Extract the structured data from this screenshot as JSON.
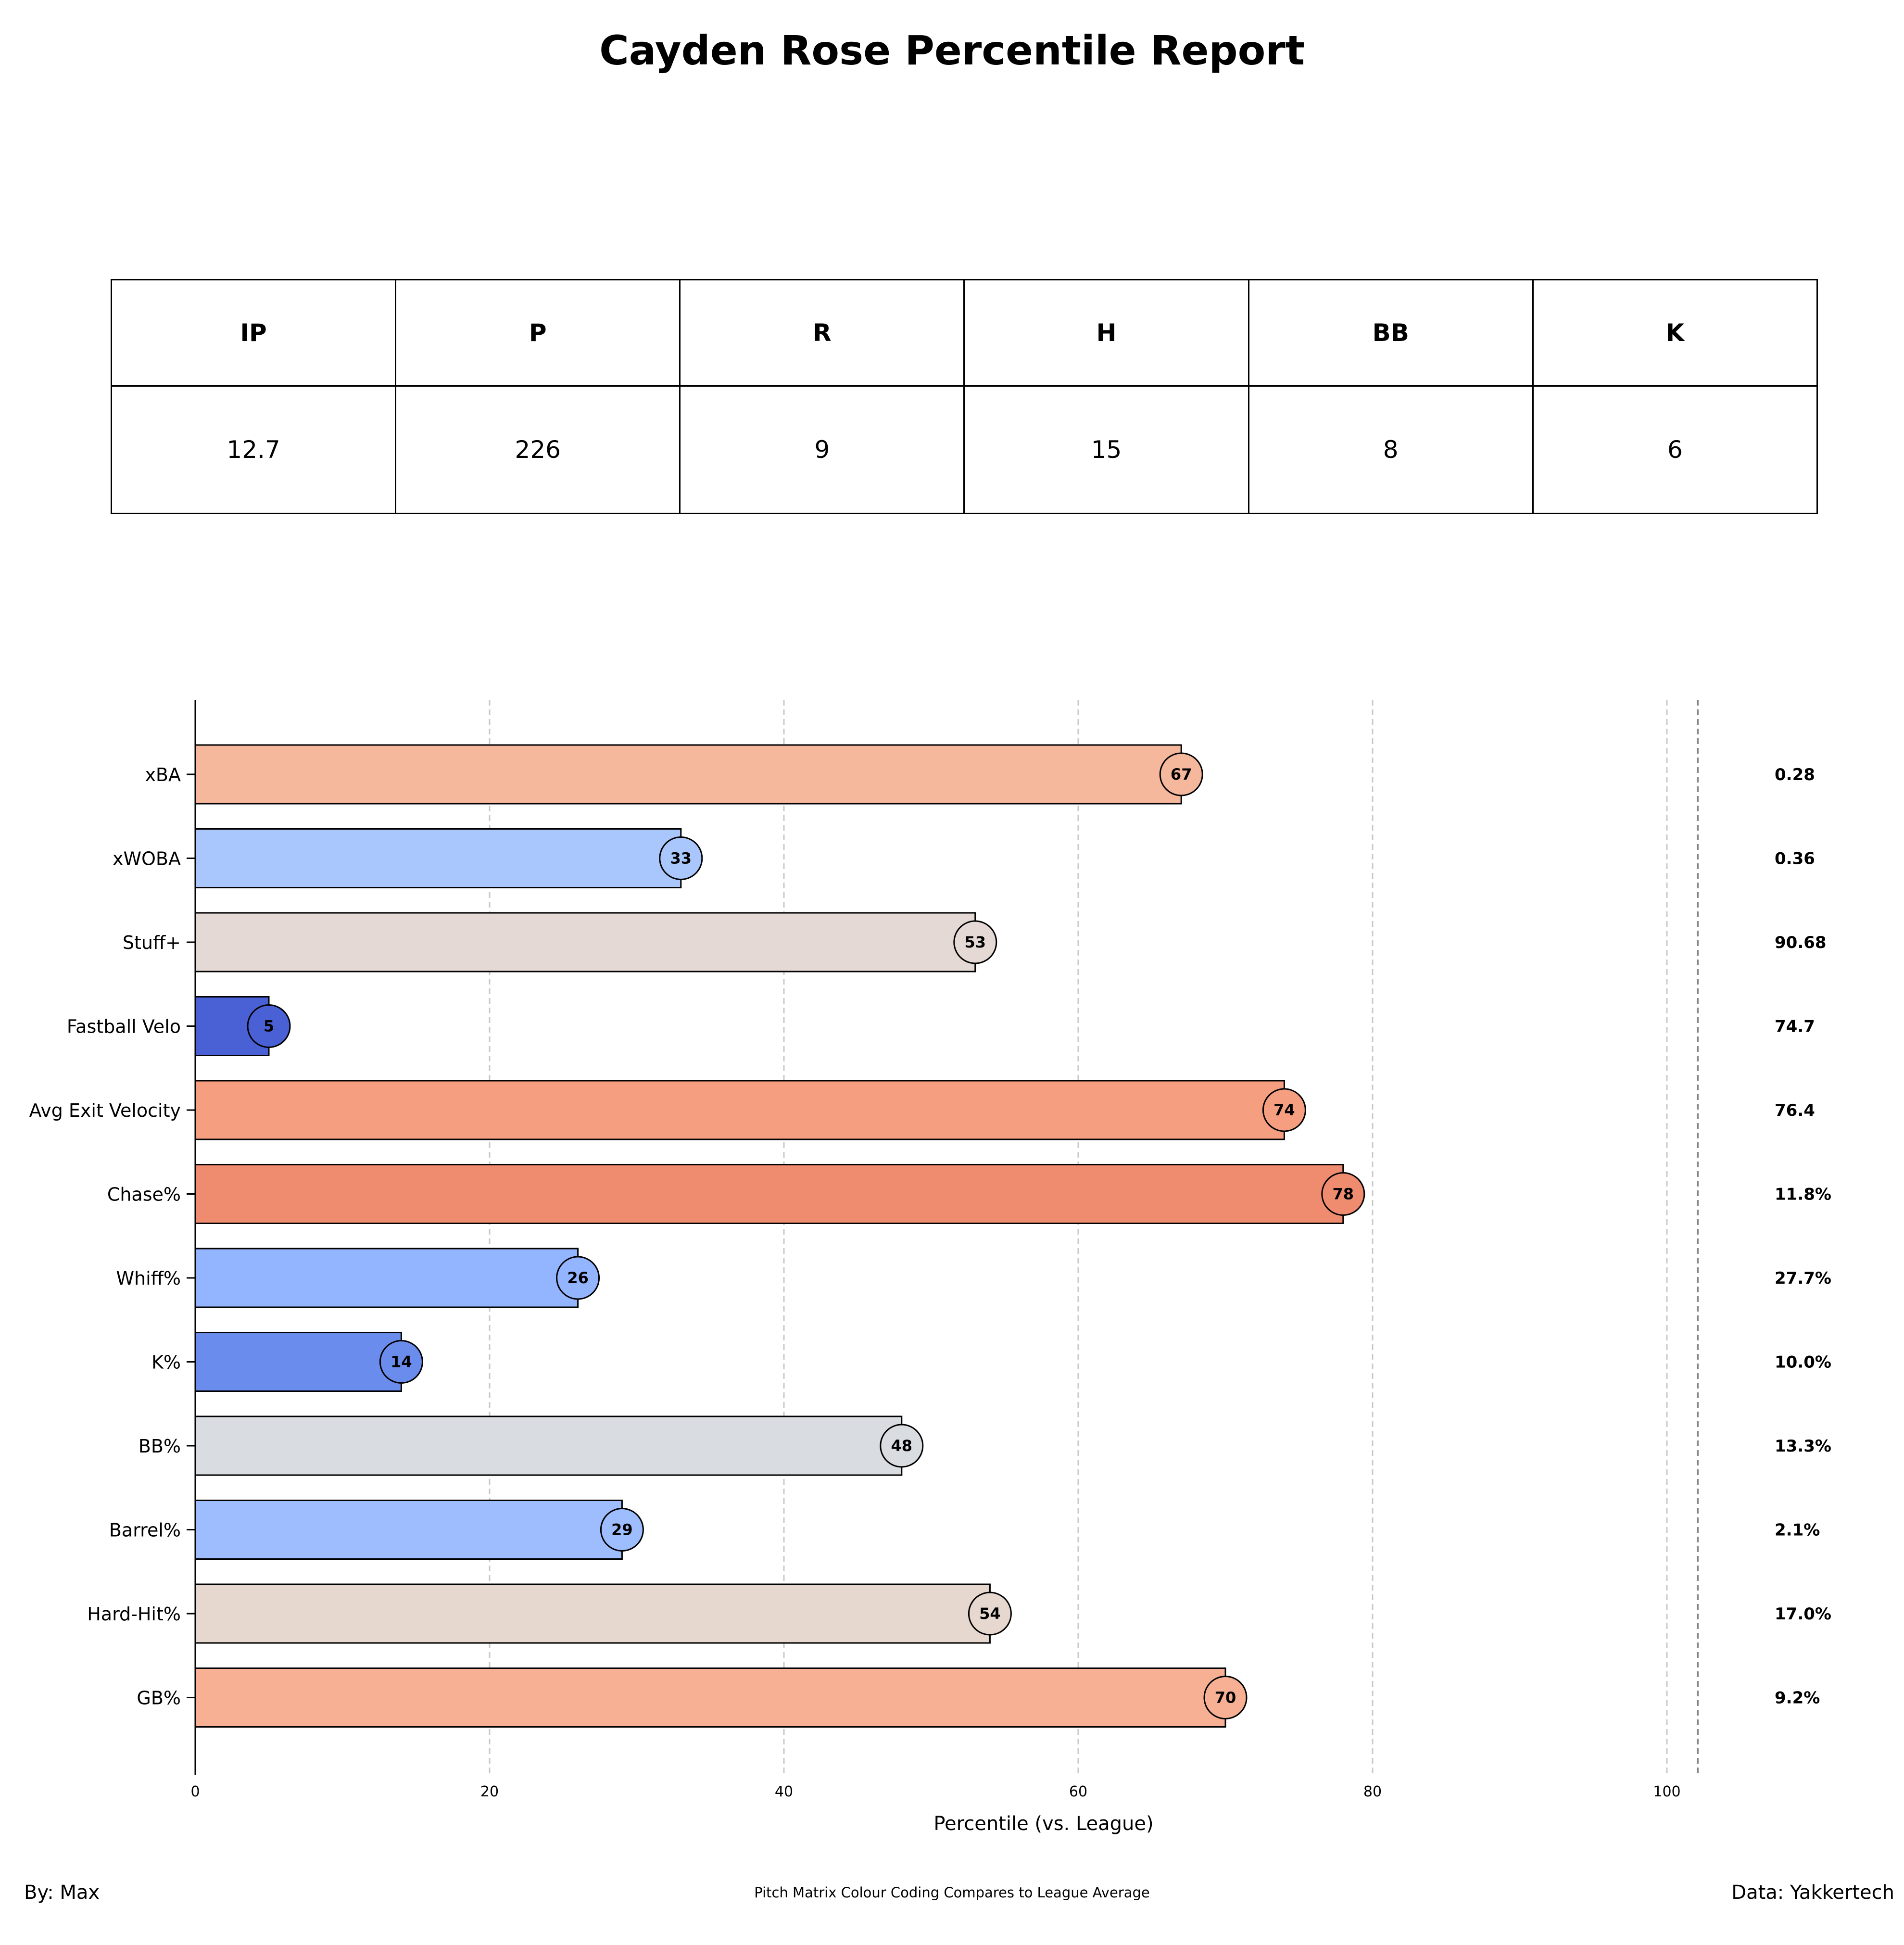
{
  "title": "Cayden Rose Percentile Report",
  "stats_table": {
    "headers": [
      "IP",
      "P",
      "R",
      "H",
      "BB",
      "K"
    ],
    "values": [
      "12.7",
      "226",
      "9",
      "15",
      "8",
      "6"
    ]
  },
  "chart_data": {
    "type": "bar",
    "orientation": "horizontal",
    "xlabel": "Percentile (vs. League)",
    "xlim": [
      0,
      110
    ],
    "xticks": [
      0,
      20,
      40,
      60,
      80,
      100
    ],
    "grid": "vertical dashed",
    "categories": [
      "xBA",
      "xWOBA",
      "Stuff+",
      "Fastball Velo",
      "Avg Exit Velocity",
      "Chase%",
      "Whiff%",
      "K%",
      "BB%",
      "Barrel%",
      "Hard-Hit%",
      "GB%"
    ],
    "percentiles": [
      67,
      33,
      53,
      5,
      74,
      78,
      26,
      14,
      48,
      29,
      54,
      70
    ],
    "percentile_labels": [
      "67",
      "33",
      "53",
      "5",
      "74",
      "78",
      "26",
      "14",
      "48",
      "29",
      "54",
      "70"
    ],
    "raw_values": [
      "0.28",
      "0.36",
      "90.68",
      "74.7",
      "76.4",
      "11.8%",
      "27.7%",
      "10.0%",
      "13.3%",
      "2.1%",
      "17.0%",
      "9.2%"
    ],
    "colors": [
      "#f6b89d",
      "#aac7fd",
      "#e4d9d5",
      "#4a61d6",
      "#f59f80",
      "#ef8c6f",
      "#93b4fe",
      "#6a8ded",
      "#d9dce1",
      "#9dbdff",
      "#e6d7cf",
      "#f7b093"
    ]
  },
  "footer": {
    "left": "By: Max",
    "center": "Pitch Matrix Colour Coding Compares to League Average",
    "right": "Data: Yakkertech"
  }
}
